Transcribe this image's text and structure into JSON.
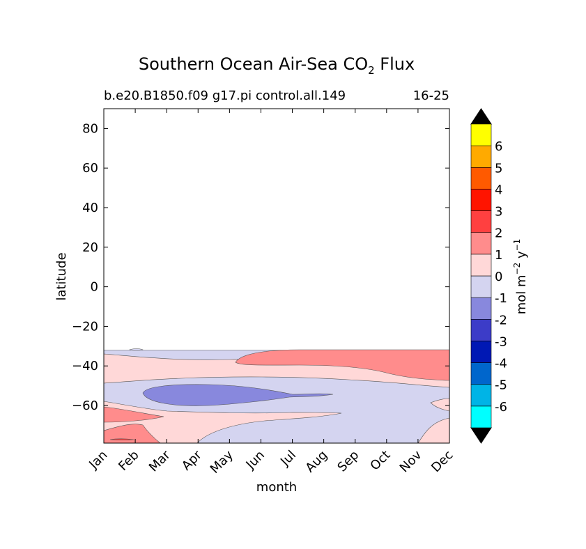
{
  "chart_data": {
    "type": "contourf",
    "title": "Southern Ocean Air-Sea CO",
    "title_subscript": "2",
    "title_suffix": " Flux",
    "subtitle_left": "b.e20.B1850.f09 g17.pi control.all.149",
    "subtitle_right": "16-25",
    "xlabel": "month",
    "ylabel": "latitude",
    "x_ticks": [
      "Jan",
      "Feb",
      "Mar",
      "Apr",
      "May",
      "Jun",
      "Jul",
      "Aug",
      "Sep",
      "Oct",
      "Nov",
      "Dec"
    ],
    "y_ticks": [
      80,
      60,
      40,
      20,
      0,
      -20,
      -40,
      -60
    ],
    "y_tick_labels": [
      "80",
      "60",
      "40",
      "20",
      "0",
      "−20",
      "−40",
      "−60"
    ],
    "ylim": [
      -79,
      90
    ],
    "data_lat_max": -32,
    "colorbar": {
      "label": "mol m",
      "label_sup1": "−2",
      "label_mid": " y",
      "label_sup2": "−1",
      "extend": "both",
      "extend_color": "#000000",
      "levels": [
        "-6",
        "-5",
        "-4",
        "-3",
        "-2",
        "-1",
        "0",
        "1",
        "2",
        "3",
        "4",
        "5",
        "6"
      ],
      "colors": [
        "#00ffff",
        "#00b4e6",
        "#0066cc",
        "#0018b4",
        "#3c3cc8",
        "#8888dd",
        "#d4d4f0",
        "#ffd8d8",
        "#ff8c8c",
        "#ff4040",
        "#ff1400",
        "#ff5a00",
        "#ffaa00",
        "#ffff00"
      ]
    },
    "regions": [
      {
        "value_range": "-1 to 0",
        "color": "#d4d4f0",
        "description": "background band -32 to -79"
      },
      {
        "value_range": "0 to 1",
        "color": "#ffd8d8",
        "description": "band near -40 to -50 latitude"
      },
      {
        "value_range": "1 to 2",
        "color": "#ff8c8c",
        "description": "Jun-Dec near -35 to -48"
      },
      {
        "value_range": "-2 to -1",
        "color": "#8888dd",
        "description": "Mar-Aug near -52 to -60"
      },
      {
        "value_range": "0 to 1",
        "color": "#ffd8d8",
        "description": "Jan-Sep near -62 to -79"
      },
      {
        "value_range": "1 to 2",
        "color": "#ff8c8c",
        "description": "Jan-Mar near -60 to -79"
      }
    ]
  }
}
